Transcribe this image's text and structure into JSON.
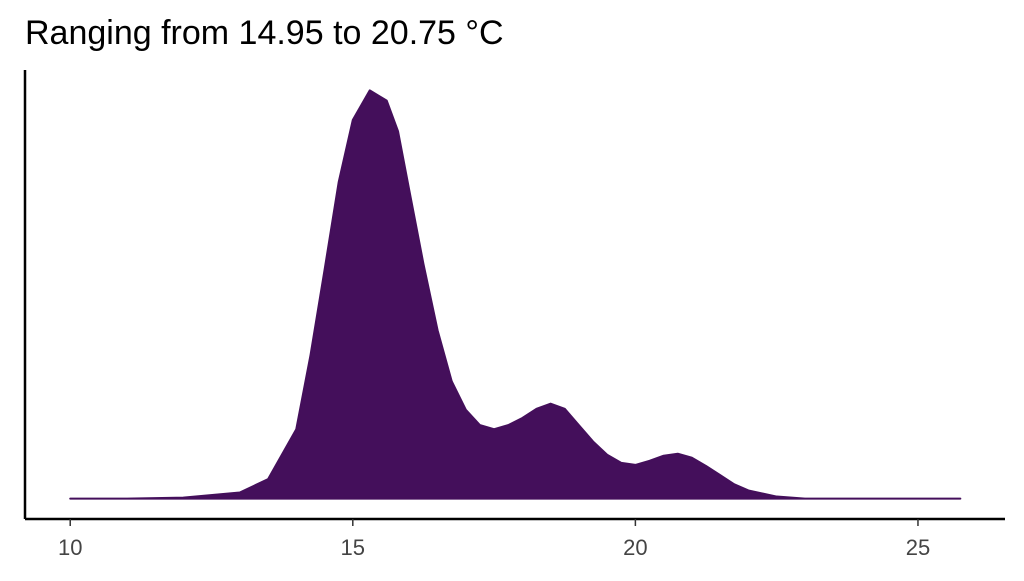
{
  "chart_data": {
    "type": "area",
    "title": "Ranging from 14.95 to 20.75 °C",
    "x": [
      10,
      11,
      12,
      13,
      13.5,
      14,
      14.25,
      14.5,
      14.75,
      15,
      15.3,
      15.6,
      15.8,
      16,
      16.25,
      16.5,
      16.75,
      17,
      17.25,
      17.5,
      17.75,
      18,
      18.25,
      18.5,
      18.75,
      19,
      19.25,
      19.5,
      19.75,
      20,
      20.25,
      20.5,
      20.75,
      21,
      21.25,
      21.5,
      21.75,
      22,
      22.5,
      23,
      24,
      25,
      25.75
    ],
    "values": [
      0,
      0,
      0.001,
      0.006,
      0.019,
      0.068,
      0.14,
      0.224,
      0.31,
      0.371,
      0.4,
      0.39,
      0.36,
      0.302,
      0.23,
      0.165,
      0.115,
      0.087,
      0.072,
      0.068,
      0.072,
      0.079,
      0.088,
      0.093,
      0.088,
      0.072,
      0.056,
      0.043,
      0.035,
      0.033,
      0.037,
      0.042,
      0.044,
      0.04,
      0.032,
      0.023,
      0.014,
      0.008,
      0.002,
      0,
      0,
      0,
      0
    ],
    "color": "#440f5b",
    "xlim": [
      9.2,
      26.54
    ],
    "ylim": [
      -0.02,
      0.42
    ],
    "xticks": [
      10,
      15,
      20,
      25
    ]
  }
}
